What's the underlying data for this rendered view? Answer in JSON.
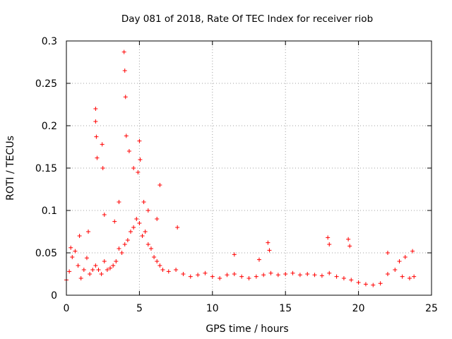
{
  "chart_data": {
    "type": "scatter",
    "title": "Day 081 of 2018, Rate Of TEC Index for receiver riob",
    "xlabel": "GPS time / hours",
    "ylabel": "ROTI / TECUs",
    "xlim": [
      0,
      25
    ],
    "ylim": [
      0,
      0.3
    ],
    "xticks": [
      0,
      5,
      10,
      15,
      20,
      25
    ],
    "yticks": [
      0,
      0.05,
      0.1,
      0.15,
      0.2,
      0.25,
      0.3
    ],
    "xtick_labels": [
      "0",
      "5",
      "10",
      "15",
      "20",
      "25"
    ],
    "ytick_labels": [
      "0",
      "0.05",
      "0.1",
      "0.15",
      "0.2",
      "0.25",
      "0.3"
    ],
    "grid": true,
    "marker": "+",
    "colors": {
      "series": "#ff0000",
      "grid": "#a0a0a0",
      "axis": "#000000"
    },
    "series": [
      {
        "name": "ROTI",
        "x": [
          0.0,
          0.2,
          0.4,
          0.6,
          0.8,
          1.0,
          1.2,
          1.4,
          1.6,
          1.8,
          2.0,
          2.2,
          2.4,
          2.6,
          2.8,
          3.0,
          3.2,
          3.4,
          3.6,
          3.8,
          4.0,
          4.2,
          4.4,
          4.6,
          4.8,
          5.0,
          5.2,
          5.4,
          5.6,
          5.8,
          6.0,
          6.2,
          6.4,
          6.6,
          7.0,
          7.5,
          8.0,
          8.5,
          9.0,
          9.5,
          10.0,
          10.5,
          11.0,
          11.5,
          12.0,
          12.5,
          13.0,
          13.5,
          14.0,
          14.5,
          15.0,
          15.5,
          16.0,
          16.5,
          17.0,
          17.5,
          18.0,
          18.5,
          19.0,
          19.5,
          20.0,
          20.5,
          21.0,
          21.5,
          22.0,
          22.5,
          23.0,
          23.5,
          23.8,
          0.3,
          0.9,
          1.5,
          2.0,
          2.0,
          2.05,
          2.1,
          2.45,
          2.5,
          2.6,
          3.3,
          3.6,
          3.95,
          4.0,
          4.05,
          4.1,
          4.3,
          4.6,
          4.9,
          5.0,
          5.05,
          5.3,
          5.6,
          6.2,
          6.4,
          7.6,
          11.5,
          13.2,
          13.8,
          13.9,
          17.9,
          18.0,
          19.3,
          19.4,
          22.0,
          22.8,
          23.2,
          23.7
        ],
        "y": [
          0.018,
          0.028,
          0.045,
          0.052,
          0.035,
          0.02,
          0.03,
          0.044,
          0.025,
          0.03,
          0.035,
          0.03,
          0.025,
          0.04,
          0.03,
          0.032,
          0.035,
          0.04,
          0.055,
          0.05,
          0.06,
          0.065,
          0.075,
          0.08,
          0.09,
          0.085,
          0.07,
          0.075,
          0.06,
          0.055,
          0.045,
          0.04,
          0.035,
          0.03,
          0.028,
          0.03,
          0.025,
          0.022,
          0.024,
          0.026,
          0.022,
          0.02,
          0.024,
          0.025,
          0.022,
          0.02,
          0.022,
          0.024,
          0.026,
          0.024,
          0.025,
          0.026,
          0.024,
          0.025,
          0.024,
          0.023,
          0.026,
          0.022,
          0.02,
          0.018,
          0.015,
          0.013,
          0.012,
          0.014,
          0.025,
          0.03,
          0.022,
          0.02,
          0.022,
          0.056,
          0.07,
          0.075,
          0.22,
          0.205,
          0.187,
          0.162,
          0.178,
          0.15,
          0.095,
          0.087,
          0.11,
          0.287,
          0.265,
          0.234,
          0.188,
          0.17,
          0.15,
          0.145,
          0.182,
          0.16,
          0.11,
          0.1,
          0.09,
          0.13,
          0.08,
          0.048,
          0.042,
          0.062,
          0.053,
          0.068,
          0.06,
          0.066,
          0.058,
          0.05,
          0.04,
          0.045,
          0.052
        ]
      }
    ]
  }
}
